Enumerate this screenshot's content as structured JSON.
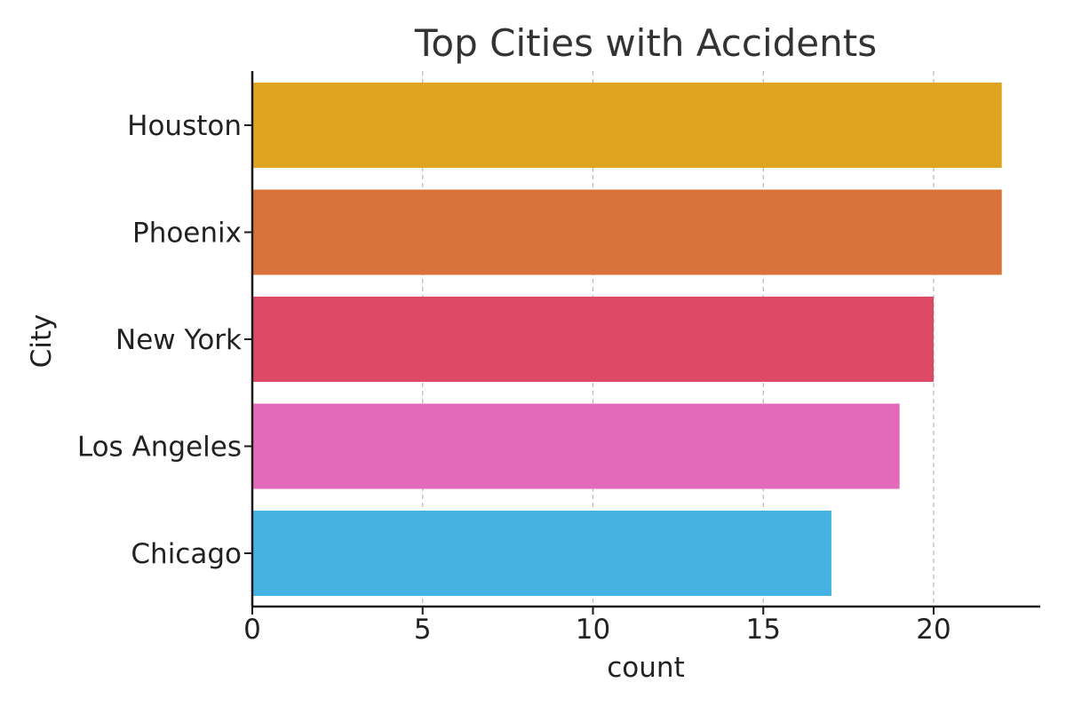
{
  "chart_data": {
    "type": "bar",
    "orientation": "horizontal",
    "title": "Top Cities with Accidents",
    "xlabel": "count",
    "ylabel": "City",
    "categories": [
      "Houston",
      "Phoenix",
      "New York",
      "Los Angeles",
      "Chicago"
    ],
    "values": [
      22,
      22,
      20,
      19,
      17
    ],
    "colors": [
      "#DFA520",
      "#D9713A",
      "#DD4A66",
      "#E36AB9",
      "#44B2E2"
    ],
    "xlim": [
      0,
      23.1
    ],
    "xticks": [
      0,
      5,
      10,
      15,
      20
    ],
    "grid": "vertical-dashed",
    "legend": "none"
  }
}
